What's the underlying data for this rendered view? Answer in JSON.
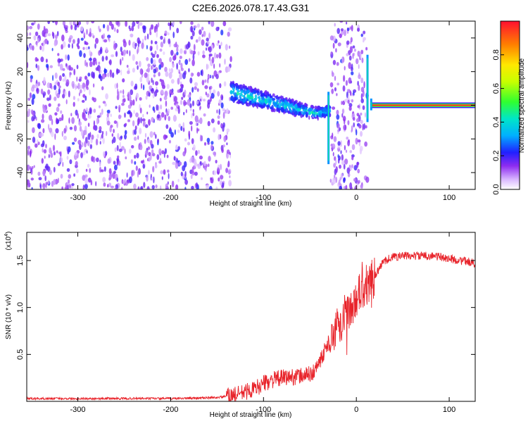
{
  "title": "C2E6.2026.078.17.43.G31",
  "chart_data": [
    {
      "type": "heatmap",
      "xlabel": "Height of straight line (km)",
      "ylabel": "Frequency (Hz)",
      "xlim": [
        -355,
        128
      ],
      "ylim": [
        -50,
        50
      ],
      "xticks": [
        -300,
        -200,
        -100,
        0,
        100
      ],
      "yticks": [
        -40,
        -20,
        0,
        20,
        40
      ],
      "colorbar": {
        "label": "Normalized spectral amplitude",
        "range": [
          0,
          1
        ],
        "ticks": [
          "0.0",
          "0.2",
          "0.4",
          "0.6",
          "0.8"
        ]
      },
      "regions": [
        {
          "x": [
            -355,
            -135
          ],
          "y": [
            -50,
            50
          ],
          "level": 0.15,
          "kind": "noise"
        },
        {
          "x": [
            -135,
            -28
          ],
          "y": [
            -20,
            14
          ],
          "level": 0.3,
          "kind": "descending-trace"
        },
        {
          "x": [
            -28,
            12
          ],
          "y": [
            -50,
            50
          ],
          "level": 0.15,
          "kind": "noise"
        },
        {
          "x": [
            15,
            128
          ],
          "y": [
            -1,
            1
          ],
          "level": 0.95,
          "kind": "carrier"
        }
      ]
    },
    {
      "type": "line",
      "xlabel": "Height of straight line (km)",
      "ylabel": "SNR (10 * v/v)",
      "multiplier": "(x10",
      "multiplier_exp": "4",
      "multiplier_close": ")",
      "xlim": [
        -355,
        128
      ],
      "ylim": [
        0,
        18000
      ],
      "xticks": [
        -300,
        -200,
        -100,
        0,
        100
      ],
      "yticks": [
        {
          "value": 5000,
          "label": "0.5"
        },
        {
          "value": 10000,
          "label": "1.0"
        },
        {
          "value": 15000,
          "label": "1.5"
        }
      ],
      "series": [
        {
          "color": "#e8232a",
          "x": [
            -355,
            -300,
            -200,
            -150,
            -130,
            -110,
            -100,
            -90,
            -80,
            -70,
            -60,
            -50,
            -45,
            -40,
            -35,
            -30,
            -25,
            -20,
            -15,
            -10,
            -5,
            0,
            5,
            10,
            15,
            20,
            25,
            30,
            40,
            50,
            60,
            70,
            80,
            90,
            100,
            110,
            120,
            128
          ],
          "y": [
            300,
            300,
            300,
            400,
            700,
            1300,
            1900,
            2300,
            2500,
            2600,
            2700,
            2900,
            3200,
            4200,
            5200,
            6400,
            7300,
            8000,
            8700,
            9500,
            10100,
            11000,
            11800,
            12300,
            12700,
            13300,
            14200,
            15000,
            15400,
            15500,
            15500,
            15500,
            15500,
            15400,
            15200,
            15000,
            14900,
            14700
          ]
        }
      ]
    }
  ]
}
